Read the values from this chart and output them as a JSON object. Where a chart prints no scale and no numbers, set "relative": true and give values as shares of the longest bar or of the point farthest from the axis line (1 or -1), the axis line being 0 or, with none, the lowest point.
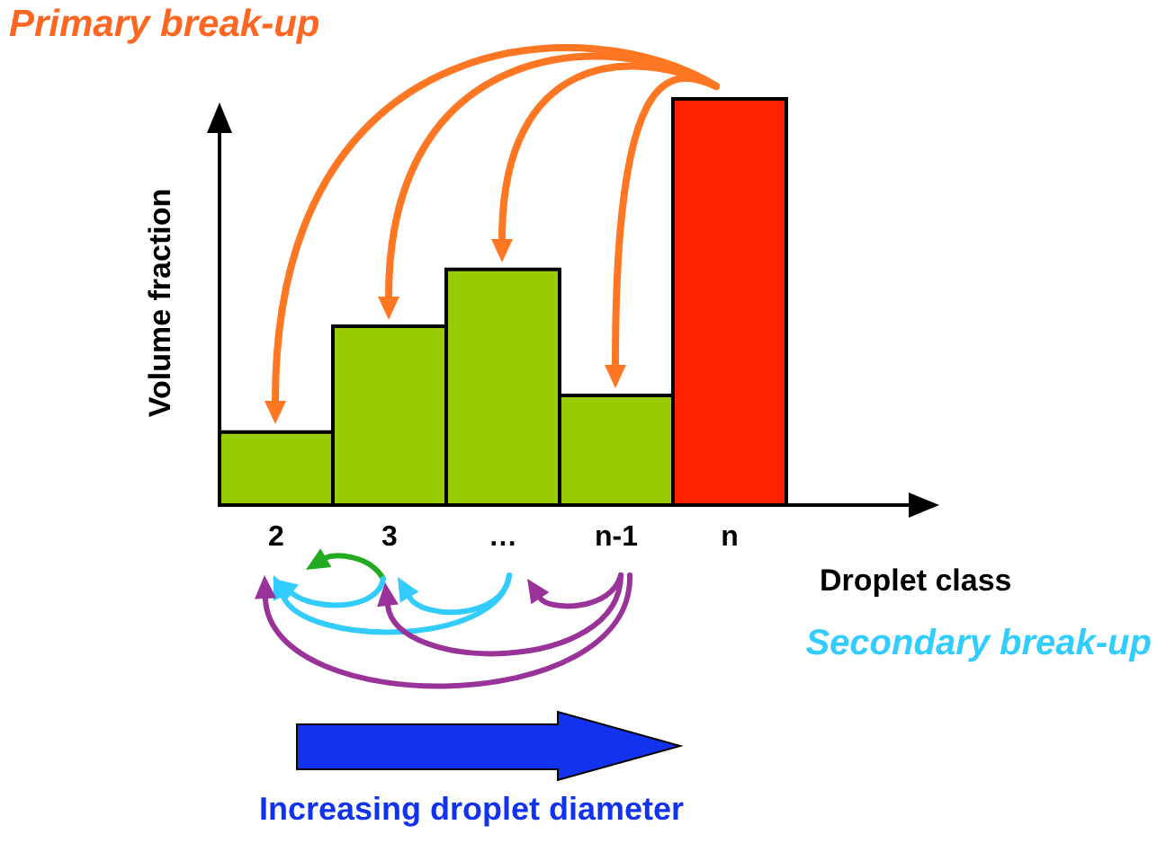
{
  "chart_data": {
    "type": "bar",
    "relative": true,
    "categories": [
      "2",
      "3",
      "…",
      "n-1",
      "n"
    ],
    "values": [
      0.18,
      0.44,
      0.58,
      0.27,
      1
    ],
    "colors": [
      "#99cc00",
      "#99cc00",
      "#99cc00",
      "#99cc00",
      "#ff2200"
    ],
    "xlabel": "Droplet class",
    "ylabel": "Volume fraction",
    "annotations": [
      "Primary break-up",
      "Secondary break-up",
      "Increasing droplet diameter"
    ]
  }
}
